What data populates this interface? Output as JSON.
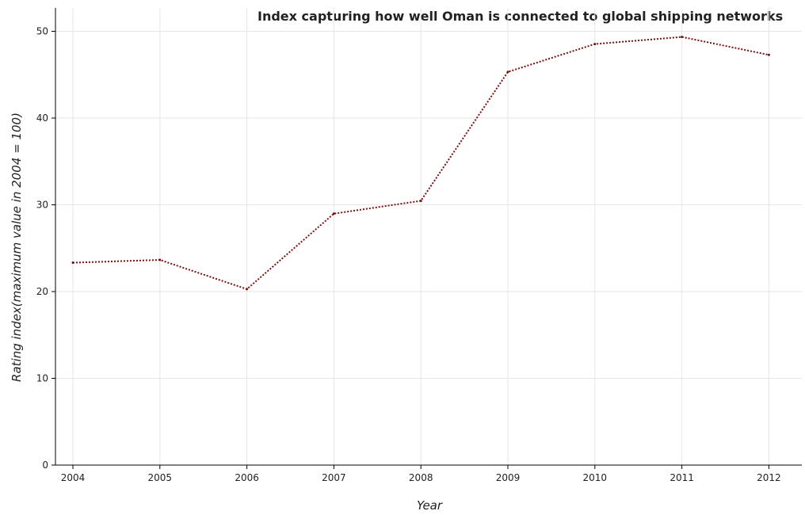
{
  "chart_data": {
    "type": "line",
    "title": "Index capturing how well Oman is connected to global shipping networks",
    "xlabel": "Year",
    "ylabel": "Rating index(maximum value in 2004 = 100)",
    "categories": [
      "2004",
      "2005",
      "2006",
      "2007",
      "2008",
      "2009",
      "2010",
      "2011",
      "2012"
    ],
    "series": [
      {
        "values": [
          23.33,
          23.65,
          20.28,
          28.98,
          30.46,
          45.32,
          48.53,
          49.35,
          47.28
        ],
        "color": "#7b1010"
      }
    ],
    "ylim": [
      0,
      50
    ],
    "yticks": [
      0,
      10,
      20,
      30,
      40,
      50
    ],
    "grid": true,
    "legend": "none"
  }
}
